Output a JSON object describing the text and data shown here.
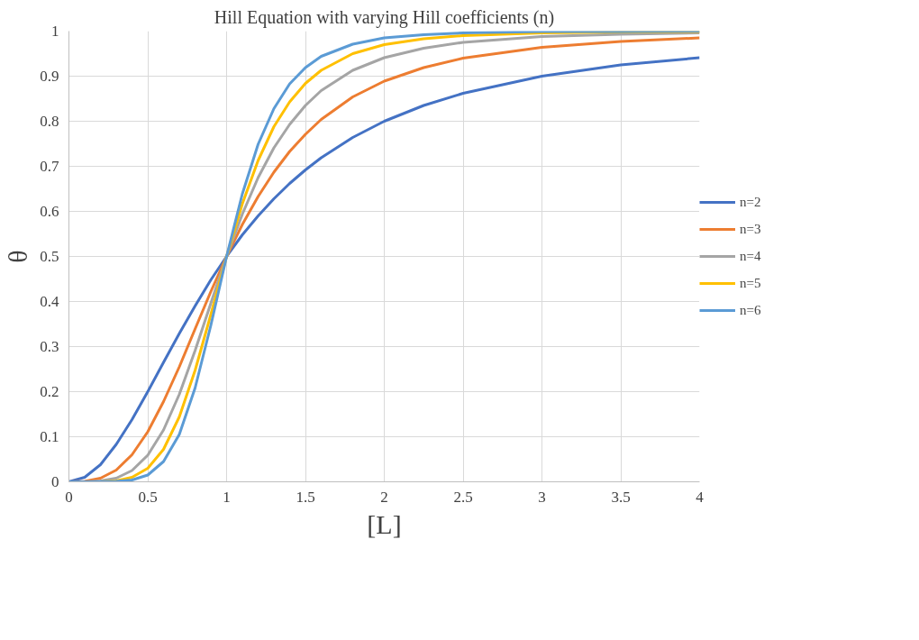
{
  "chart_data": {
    "type": "line",
    "title": "Hill Equation with varying Hill coefficients (n)",
    "xlabel": "[L]",
    "ylabel": "θ",
    "x": [
      0,
      0.1,
      0.2,
      0.3,
      0.4,
      0.5,
      0.6,
      0.7,
      0.8,
      0.9,
      1,
      1.1,
      1.2,
      1.3,
      1.4,
      1.5,
      1.6,
      1.8,
      2,
      2.25,
      2.5,
      3,
      3.5,
      4
    ],
    "series": [
      {
        "name": "n=2",
        "color": "#4472c4",
        "values": [
          0,
          0.01,
          0.038,
          0.083,
          0.138,
          0.2,
          0.265,
          0.329,
          0.39,
          0.448,
          0.5,
          0.548,
          0.59,
          0.628,
          0.662,
          0.692,
          0.719,
          0.764,
          0.8,
          0.835,
          0.862,
          0.9,
          0.925,
          0.941
        ]
      },
      {
        "name": "n=3",
        "color": "#ed7d31",
        "values": [
          0,
          0.001,
          0.008,
          0.026,
          0.06,
          0.111,
          0.178,
          0.255,
          0.339,
          0.422,
          0.5,
          0.571,
          0.633,
          0.687,
          0.733,
          0.771,
          0.804,
          0.854,
          0.889,
          0.919,
          0.94,
          0.964,
          0.977,
          0.985
        ]
      },
      {
        "name": "n=4",
        "color": "#a5a5a5",
        "values": [
          0,
          0,
          0.002,
          0.008,
          0.025,
          0.059,
          0.115,
          0.194,
          0.291,
          0.396,
          0.5,
          0.594,
          0.675,
          0.741,
          0.793,
          0.835,
          0.868,
          0.913,
          0.941,
          0.962,
          0.975,
          0.988,
          0.993,
          0.996
        ]
      },
      {
        "name": "n=5",
        "color": "#ffc000",
        "x": [
          0.2,
          0.3,
          0.4,
          0.5,
          0.6,
          0.7,
          0.8,
          0.9,
          1,
          1.1,
          1.2,
          1.3,
          1.4,
          1.5,
          1.6,
          1.8,
          2,
          2.25,
          2.5,
          3,
          3.5,
          4
        ],
        "values": [
          0,
          0.002,
          0.01,
          0.03,
          0.072,
          0.144,
          0.247,
          0.371,
          0.5,
          0.617,
          0.713,
          0.788,
          0.843,
          0.884,
          0.913,
          0.95,
          0.97,
          0.983,
          0.99,
          0.996,
          0.998,
          0.999
        ]
      },
      {
        "name": "n=6",
        "color": "#5b9bd5",
        "values": [
          0,
          0,
          0,
          0.001,
          0.004,
          0.015,
          0.045,
          0.105,
          0.208,
          0.347,
          0.5,
          0.639,
          0.749,
          0.828,
          0.883,
          0.919,
          0.944,
          0.971,
          0.985,
          0.992,
          0.996,
          0.999,
          0.999,
          1.0
        ]
      }
    ],
    "xlim": [
      0,
      4
    ],
    "xticks": [
      0,
      0.5,
      1,
      1.5,
      2,
      2.5,
      3,
      3.5,
      4
    ],
    "ylim": [
      0,
      1
    ],
    "yticks": [
      0,
      0.1,
      0.2,
      0.3,
      0.4,
      0.5,
      0.6,
      0.7,
      0.8,
      0.9,
      1
    ],
    "grid": true,
    "legend": "right",
    "marker": "none",
    "line_style": "solid"
  }
}
